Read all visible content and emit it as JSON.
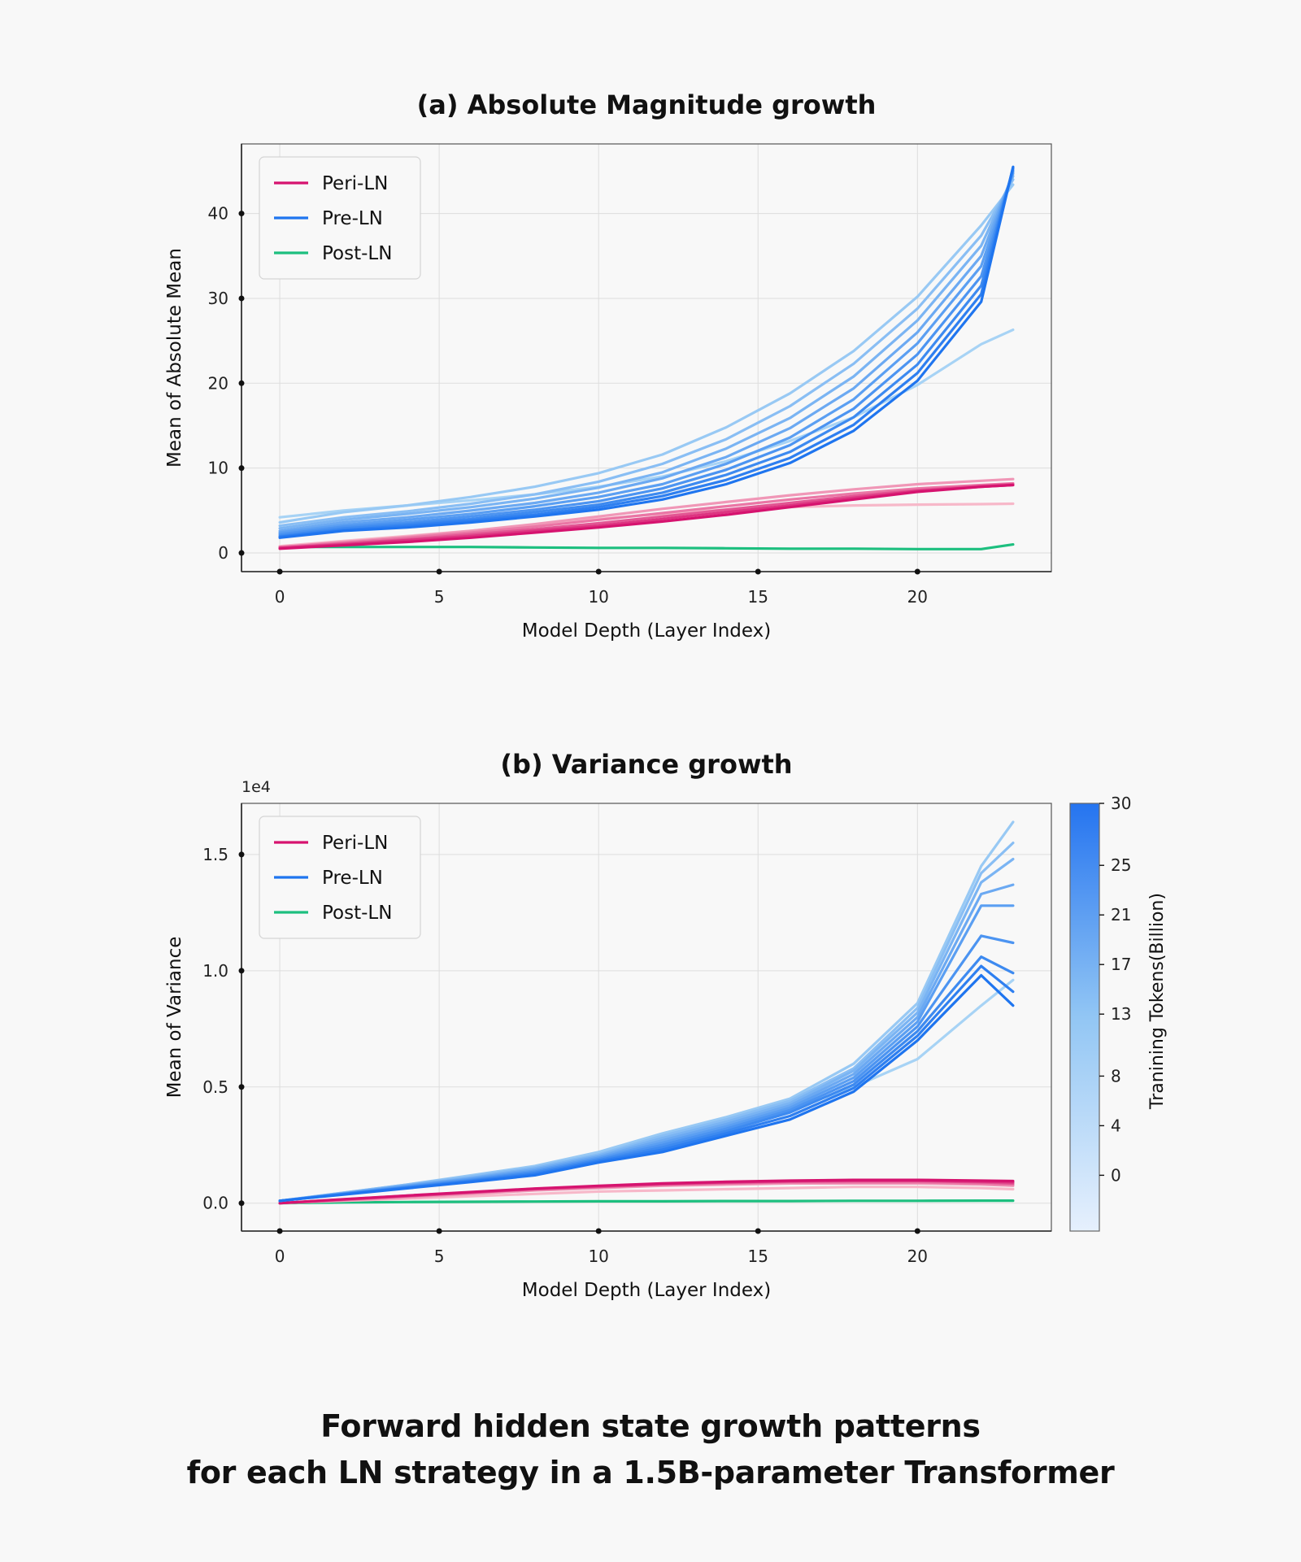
{
  "caption": {
    "line1": "Forward hidden state growth patterns",
    "line2": "for each LN strategy in a 1.5B-parameter Transformer"
  },
  "colors": {
    "peri": "#d6136f",
    "peri_light": "#f7b8c9",
    "pre": "#1f75ef",
    "pre_light": "#a7d3f5",
    "post": "#1dbf7f",
    "background": "#f8f8f8",
    "grid": "#dddddd",
    "colorbar_top": "#2574f0",
    "colorbar_bottom": "#e6f0fd"
  },
  "chart_data": [
    {
      "type": "line",
      "title": "(a) Absolute Magnitude growth",
      "xlabel": "Model Depth (Layer Index)",
      "ylabel": "Mean of Absolute Mean",
      "xlim": [
        -1.2,
        24.2
      ],
      "ylim": [
        -2.2,
        48.2
      ],
      "xticks": [
        0,
        5,
        10,
        15,
        20
      ],
      "yticks": [
        0,
        10,
        20,
        30,
        40
      ],
      "ytick_labels": [
        "0",
        "10",
        "20",
        "30",
        "40"
      ],
      "offset_label": "",
      "grid": true,
      "legend": {
        "placement": "top-left",
        "entries": [
          "Peri-LN",
          "Pre-LN",
          "Post-LN"
        ]
      },
      "x": [
        0,
        2,
        4,
        6,
        8,
        10,
        12,
        14,
        16,
        18,
        20,
        22,
        23
      ],
      "series": [
        {
          "group": "Peri-LN",
          "checkpoint": 0,
          "values": [
            0.8,
            1.4,
            2.0,
            2.6,
            3.3,
            4.0,
            4.6,
            5.1,
            5.4,
            5.6,
            5.7,
            5.75,
            5.8
          ]
        },
        {
          "group": "Peri-LN",
          "checkpoint": 1,
          "values": [
            0.7,
            1.3,
            1.9,
            2.6,
            3.4,
            4.3,
            5.2,
            6.0,
            6.8,
            7.5,
            8.1,
            8.5,
            8.7
          ]
        },
        {
          "group": "Peri-LN",
          "checkpoint": 2,
          "values": [
            0.7,
            1.2,
            1.8,
            2.4,
            3.1,
            3.9,
            4.7,
            5.5,
            6.3,
            7.0,
            7.6,
            8.0,
            8.2
          ]
        },
        {
          "group": "Peri-LN",
          "checkpoint": 3,
          "values": [
            0.6,
            1.1,
            1.6,
            2.2,
            2.8,
            3.5,
            4.3,
            5.1,
            5.9,
            6.7,
            7.4,
            7.9,
            8.1
          ]
        },
        {
          "group": "Peri-LN",
          "checkpoint": 4,
          "values": [
            0.6,
            1.0,
            1.5,
            2.0,
            2.6,
            3.2,
            4.0,
            4.8,
            5.6,
            6.5,
            7.3,
            7.8,
            8.0
          ]
        },
        {
          "group": "Peri-LN",
          "checkpoint": 5,
          "values": [
            0.5,
            0.9,
            1.3,
            1.8,
            2.4,
            3.0,
            3.7,
            4.5,
            5.4,
            6.3,
            7.2,
            7.8,
            8.0
          ]
        },
        {
          "group": "Pre-LN",
          "checkpoint": 0,
          "values": [
            4.2,
            5.0,
            5.6,
            6.2,
            6.9,
            7.8,
            9.0,
            10.8,
            13.2,
            16.0,
            19.8,
            24.6,
            26.3
          ]
        },
        {
          "group": "Pre-LN",
          "checkpoint": 1,
          "values": [
            3.6,
            4.8,
            5.6,
            6.6,
            7.8,
            9.4,
            11.6,
            14.8,
            18.8,
            23.8,
            30.2,
            38.6,
            43.4
          ]
        },
        {
          "group": "Pre-LN",
          "checkpoint": 2,
          "values": [
            3.2,
            4.2,
            4.9,
            5.8,
            6.9,
            8.4,
            10.5,
            13.4,
            17.3,
            22.3,
            28.8,
            37.4,
            44.0
          ]
        },
        {
          "group": "Pre-LN",
          "checkpoint": 3,
          "values": [
            2.9,
            3.9,
            4.6,
            5.4,
            6.4,
            7.7,
            9.5,
            12.3,
            15.9,
            20.8,
            27.4,
            36.2,
            44.4
          ]
        },
        {
          "group": "Pre-LN",
          "checkpoint": 4,
          "values": [
            2.6,
            3.6,
            4.2,
            5.0,
            5.9,
            7.1,
            8.8,
            11.3,
            14.7,
            19.4,
            26.0,
            35.0,
            44.7
          ]
        },
        {
          "group": "Pre-LN",
          "checkpoint": 5,
          "values": [
            2.4,
            3.3,
            3.9,
            4.6,
            5.5,
            6.6,
            8.1,
            10.5,
            13.6,
            18.1,
            24.7,
            33.8,
            44.9
          ]
        },
        {
          "group": "Pre-LN",
          "checkpoint": 6,
          "values": [
            2.2,
            3.1,
            3.6,
            4.3,
            5.1,
            6.1,
            7.6,
            9.8,
            12.7,
            17.0,
            23.4,
            32.6,
            45.1
          ]
        },
        {
          "group": "Pre-LN",
          "checkpoint": 7,
          "values": [
            2.0,
            2.9,
            3.4,
            4.0,
            4.8,
            5.7,
            7.1,
            9.2,
            11.9,
            16.0,
            22.2,
            31.5,
            45.3
          ]
        },
        {
          "group": "Pre-LN",
          "checkpoint": 8,
          "values": [
            1.9,
            2.7,
            3.2,
            3.8,
            4.5,
            5.4,
            6.7,
            8.6,
            11.2,
            15.1,
            21.2,
            30.5,
            45.4
          ]
        },
        {
          "group": "Pre-LN",
          "checkpoint": 9,
          "values": [
            1.8,
            2.6,
            3.0,
            3.6,
            4.3,
            5.1,
            6.3,
            8.1,
            10.6,
            14.4,
            20.3,
            29.6,
            45.5
          ]
        },
        {
          "group": "Post-LN",
          "checkpoint": 0,
          "values": [
            0.7,
            0.7,
            0.7,
            0.7,
            0.65,
            0.6,
            0.6,
            0.55,
            0.5,
            0.5,
            0.45,
            0.45,
            1.0
          ]
        }
      ]
    },
    {
      "type": "line",
      "title": "(b) Variance growth",
      "xlabel": "Model Depth (Layer Index)",
      "ylabel": "Mean of Variance",
      "xlim": [
        -1.2,
        24.2
      ],
      "ylim": [
        -0.12,
        1.72
      ],
      "xticks": [
        0,
        5,
        10,
        15,
        20
      ],
      "yticks": [
        0.0,
        0.5,
        1.0,
        1.5
      ],
      "ytick_labels": [
        "0.0",
        "0.5",
        "1.0",
        "1.5"
      ],
      "offset_label": "1e4",
      "grid": true,
      "legend": {
        "placement": "top-left",
        "entries": [
          "Peri-LN",
          "Pre-LN",
          "Post-LN"
        ]
      },
      "x": [
        0,
        2,
        4,
        6,
        8,
        10,
        12,
        14,
        16,
        18,
        20,
        22,
        23
      ],
      "series": [
        {
          "group": "Peri-LN",
          "checkpoint": 0,
          "values": [
            0.0,
            0.01,
            0.02,
            0.03,
            0.04,
            0.05,
            0.055,
            0.06,
            0.065,
            0.07,
            0.07,
            0.065,
            0.06
          ]
        },
        {
          "group": "Peri-LN",
          "checkpoint": 1,
          "values": [
            0.0,
            0.012,
            0.025,
            0.04,
            0.055,
            0.065,
            0.075,
            0.08,
            0.085,
            0.085,
            0.085,
            0.08,
            0.075
          ]
        },
        {
          "group": "Peri-LN",
          "checkpoint": 2,
          "values": [
            0.0,
            0.015,
            0.03,
            0.045,
            0.06,
            0.07,
            0.08,
            0.085,
            0.09,
            0.09,
            0.09,
            0.085,
            0.08
          ]
        },
        {
          "group": "Peri-LN",
          "checkpoint": 3,
          "values": [
            0.0,
            0.015,
            0.03,
            0.045,
            0.06,
            0.07,
            0.08,
            0.088,
            0.093,
            0.095,
            0.095,
            0.09,
            0.085
          ]
        },
        {
          "group": "Peri-LN",
          "checkpoint": 4,
          "values": [
            0.0,
            0.016,
            0.032,
            0.047,
            0.062,
            0.073,
            0.083,
            0.09,
            0.095,
            0.097,
            0.097,
            0.093,
            0.09
          ]
        },
        {
          "group": "Peri-LN",
          "checkpoint": 5,
          "values": [
            0.0,
            0.017,
            0.033,
            0.048,
            0.063,
            0.075,
            0.085,
            0.092,
            0.097,
            0.1,
            0.1,
            0.097,
            0.095
          ]
        },
        {
          "group": "Pre-LN",
          "checkpoint": 0,
          "values": [
            0.01,
            0.04,
            0.07,
            0.1,
            0.14,
            0.19,
            0.25,
            0.32,
            0.4,
            0.5,
            0.62,
            0.85,
            0.96
          ]
        },
        {
          "group": "Pre-LN",
          "checkpoint": 1,
          "values": [
            0.01,
            0.045,
            0.08,
            0.12,
            0.16,
            0.22,
            0.3,
            0.37,
            0.45,
            0.6,
            0.86,
            1.45,
            1.64
          ]
        },
        {
          "group": "Pre-LN",
          "checkpoint": 2,
          "values": [
            0.01,
            0.045,
            0.08,
            0.115,
            0.155,
            0.21,
            0.29,
            0.36,
            0.44,
            0.58,
            0.84,
            1.42,
            1.55
          ]
        },
        {
          "group": "Pre-LN",
          "checkpoint": 3,
          "values": [
            0.01,
            0.043,
            0.077,
            0.11,
            0.15,
            0.205,
            0.28,
            0.35,
            0.43,
            0.57,
            0.82,
            1.38,
            1.48
          ]
        },
        {
          "group": "Pre-LN",
          "checkpoint": 4,
          "values": [
            0.01,
            0.042,
            0.075,
            0.107,
            0.145,
            0.2,
            0.27,
            0.34,
            0.42,
            0.555,
            0.8,
            1.33,
            1.37
          ]
        },
        {
          "group": "Pre-LN",
          "checkpoint": 5,
          "values": [
            0.01,
            0.041,
            0.073,
            0.104,
            0.14,
            0.195,
            0.26,
            0.33,
            0.41,
            0.54,
            0.78,
            1.28,
            1.28
          ]
        },
        {
          "group": "Pre-LN",
          "checkpoint": 6,
          "values": [
            0.01,
            0.04,
            0.07,
            0.1,
            0.135,
            0.19,
            0.25,
            0.32,
            0.4,
            0.525,
            0.76,
            1.15,
            1.12
          ]
        },
        {
          "group": "Pre-LN",
          "checkpoint": 7,
          "values": [
            0.01,
            0.039,
            0.068,
            0.097,
            0.13,
            0.185,
            0.24,
            0.31,
            0.39,
            0.51,
            0.74,
            1.06,
            0.99
          ]
        },
        {
          "group": "Pre-LN",
          "checkpoint": 8,
          "values": [
            0.01,
            0.038,
            0.066,
            0.094,
            0.125,
            0.18,
            0.23,
            0.3,
            0.375,
            0.495,
            0.72,
            1.02,
            0.91
          ]
        },
        {
          "group": "Pre-LN",
          "checkpoint": 9,
          "values": [
            0.01,
            0.037,
            0.064,
            0.091,
            0.12,
            0.175,
            0.22,
            0.29,
            0.36,
            0.48,
            0.7,
            0.98,
            0.85
          ]
        },
        {
          "group": "Post-LN",
          "checkpoint": 0,
          "values": [
            0.0,
            0.003,
            0.005,
            0.006,
            0.007,
            0.008,
            0.008,
            0.009,
            0.009,
            0.01,
            0.01,
            0.011,
            0.011
          ]
        }
      ]
    }
  ],
  "colorbar": {
    "label": "Tranining Tokens(Billion)",
    "ticks": [
      "30",
      "25",
      "21",
      "17",
      "13",
      "8",
      "4",
      "0"
    ],
    "tick_values": [
      30,
      25,
      21,
      17,
      13,
      8,
      4,
      0
    ],
    "range": [
      -4.5,
      30
    ]
  }
}
